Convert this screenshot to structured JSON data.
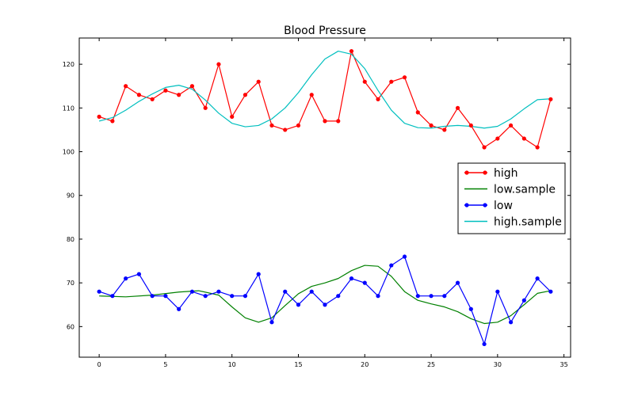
{
  "chart_data": {
    "type": "line",
    "title": "Blood Pressure",
    "xlabel": "",
    "ylabel": "",
    "xlim": [
      -1.5,
      35.5
    ],
    "ylim": [
      53,
      126
    ],
    "x_ticks": [
      0,
      5,
      10,
      15,
      20,
      25,
      30,
      35
    ],
    "y_ticks": [
      60,
      70,
      80,
      90,
      100,
      110,
      120
    ],
    "grid": false,
    "legend_position": "center-right",
    "series": [
      {
        "name": "high",
        "color": "#ff0000",
        "markers": true,
        "x": [
          0,
          1,
          2,
          3,
          4,
          5,
          6,
          7,
          8,
          9,
          10,
          11,
          12,
          13,
          14,
          15,
          16,
          17,
          18,
          19,
          20,
          21,
          22,
          23,
          24,
          25,
          26,
          27,
          28,
          29,
          30,
          31,
          32,
          33,
          34
        ],
        "y": [
          108,
          107,
          115,
          113,
          112,
          114,
          113,
          115,
          110,
          120,
          108,
          113,
          116,
          106,
          105,
          106,
          113,
          107,
          107,
          123,
          116,
          112,
          116,
          117,
          109,
          106,
          105,
          110,
          106,
          101,
          103,
          106,
          103,
          101,
          112
        ]
      },
      {
        "name": "low.sample",
        "color": "#008000",
        "markers": false,
        "x": [
          0,
          2,
          4,
          6,
          7.5,
          9,
          10,
          11,
          12,
          13,
          14,
          15,
          16,
          17,
          18,
          19,
          20,
          21,
          22,
          23,
          24,
          25,
          26,
          27,
          28,
          29,
          30,
          31,
          32,
          33,
          34
        ],
        "y": [
          67,
          66.8,
          67.2,
          67.9,
          68.2,
          67.2,
          64.5,
          62,
          61,
          62,
          64.8,
          67.5,
          69.2,
          70,
          71,
          72.8,
          74,
          73.8,
          71.5,
          68,
          66,
          65.2,
          64.5,
          63.4,
          61.8,
          60.7,
          61,
          62.5,
          65,
          67.6,
          68.2
        ]
      },
      {
        "name": "low",
        "color": "#0000ff",
        "markers": true,
        "x": [
          0,
          1,
          2,
          3,
          4,
          5,
          6,
          7,
          8,
          9,
          10,
          11,
          12,
          13,
          14,
          15,
          16,
          17,
          18,
          19,
          20,
          21,
          22,
          23,
          24,
          25,
          26,
          27,
          28,
          29,
          30,
          31,
          32,
          33,
          34
        ],
        "y": [
          68,
          67,
          71,
          72,
          67,
          67,
          64,
          68,
          67,
          68,
          67,
          67,
          72,
          61,
          68,
          65,
          68,
          65,
          67,
          71,
          70,
          67,
          74,
          76,
          67,
          67,
          67,
          70,
          64,
          56,
          68,
          61,
          66,
          71,
          68
        ]
      },
      {
        "name": "high.sample",
        "color": "#00bfbf",
        "markers": false,
        "x": [
          0,
          1,
          2,
          3,
          4,
          5,
          6,
          7,
          8,
          9,
          10,
          11,
          12,
          13,
          14,
          15,
          16,
          17,
          18,
          19,
          20,
          21,
          22,
          23,
          24,
          25,
          26,
          27,
          28,
          29,
          30,
          31,
          32,
          33,
          34
        ],
        "y": [
          107,
          107.8,
          109.5,
          111.5,
          113.2,
          114.7,
          115.2,
          114.3,
          111.8,
          108.8,
          106.5,
          105.7,
          106,
          107.5,
          110,
          113.5,
          117.6,
          121.2,
          123,
          122.3,
          119,
          114,
          109.5,
          106.5,
          105.5,
          105.4,
          105.8,
          106,
          105.8,
          105.4,
          105.8,
          107.5,
          109.8,
          111.9,
          112.1
        ]
      }
    ]
  }
}
